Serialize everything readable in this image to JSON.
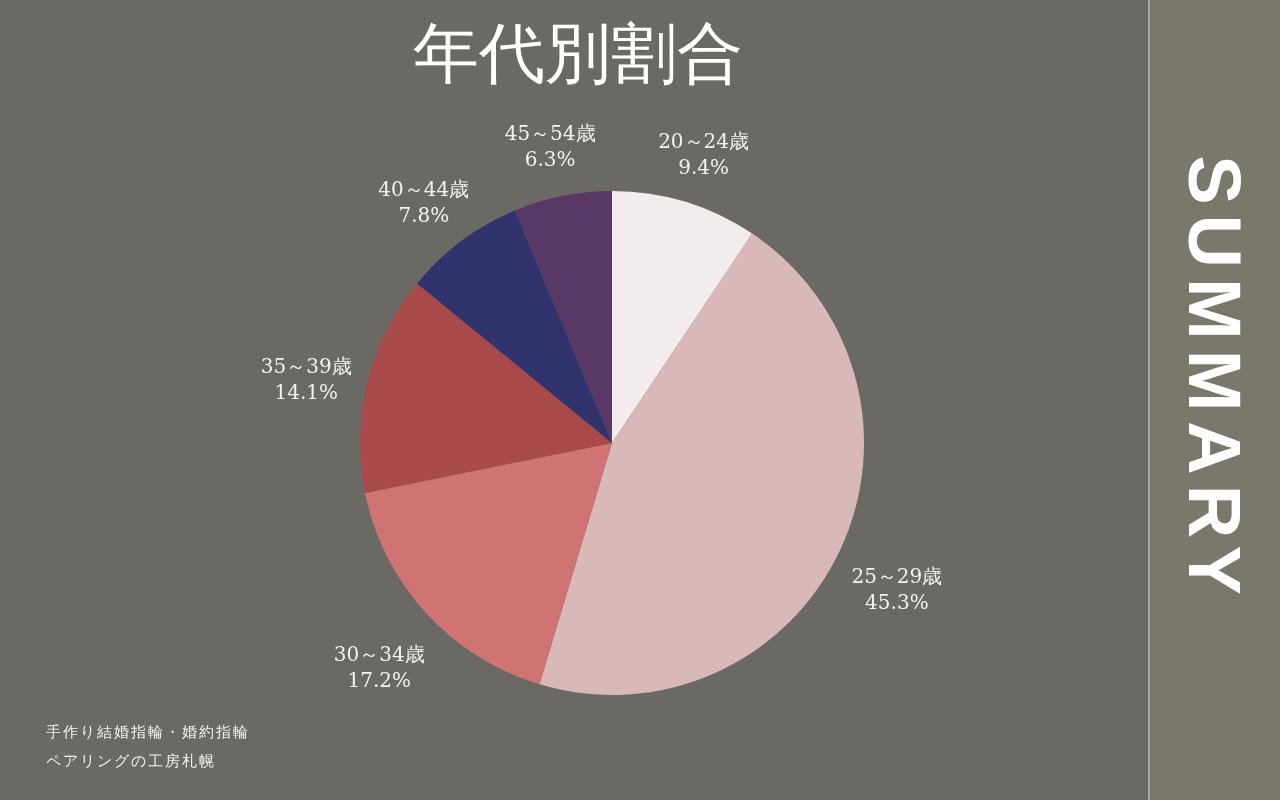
{
  "chart_data": {
    "type": "pie",
    "title": "年代別割合",
    "categories": [
      "20～24歳",
      "25～29歳",
      "30～34歳",
      "35～39歳",
      "40～44歳",
      "45～54歳"
    ],
    "values": [
      9.4,
      45.3,
      17.2,
      14.1,
      7.8,
      6.3
    ],
    "value_labels": [
      "9.4%",
      "45.3%",
      "17.2%",
      "14.1%",
      "7.8%",
      "6.3%"
    ],
    "colors": [
      "#f3eced",
      "#d9b8ba",
      "#cf7472",
      "#a94a4a",
      "#31346c",
      "#5a3865"
    ],
    "legend": false,
    "annotations": [
      "SUMMARY",
      "手作り結婚指輪・婚約指輪",
      "ペアリングの工房札幌"
    ]
  }
}
